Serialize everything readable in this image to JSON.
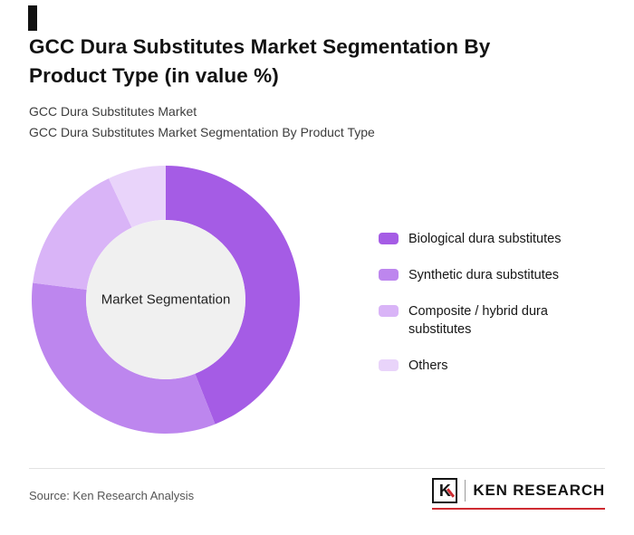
{
  "page": {
    "title": "GCC Dura Substitutes Market Segmentation By Product Type (in value %)",
    "subtitle_line1": "GCC Dura Substitutes Market",
    "subtitle_line2": "GCC Dura Substitutes Market Segmentation By Product Type",
    "source_text": "Source: Ken Research Analysis"
  },
  "logo": {
    "icon_letter": "K",
    "text": "KEN RESEARCH",
    "accent_color": "#cf2b31"
  },
  "chart_data": {
    "type": "pie",
    "donut": true,
    "title": "GCC Dura Substitutes Market Segmentation By Product Type (in value %)",
    "center_label": "Market Segmentation",
    "categories": [
      "Biological dura substitutes",
      "Synthetic dura substitutes",
      "Composite / hybrid dura substitutes",
      "Others"
    ],
    "values": [
      44,
      33,
      16,
      7
    ],
    "value_note": "percent share estimated from arc angles; no numeric labels shown in image",
    "colors": [
      "#a55ce5",
      "#bd86ee",
      "#d9b4f7",
      "#e9d4fa"
    ],
    "inner_circle_color": "#f0f0f0",
    "start_angle_deg": 0,
    "direction": "clockwise",
    "legend_position": "right",
    "legend_wrapped_item": "Composite / hybrid dura\nsubstitutes"
  }
}
